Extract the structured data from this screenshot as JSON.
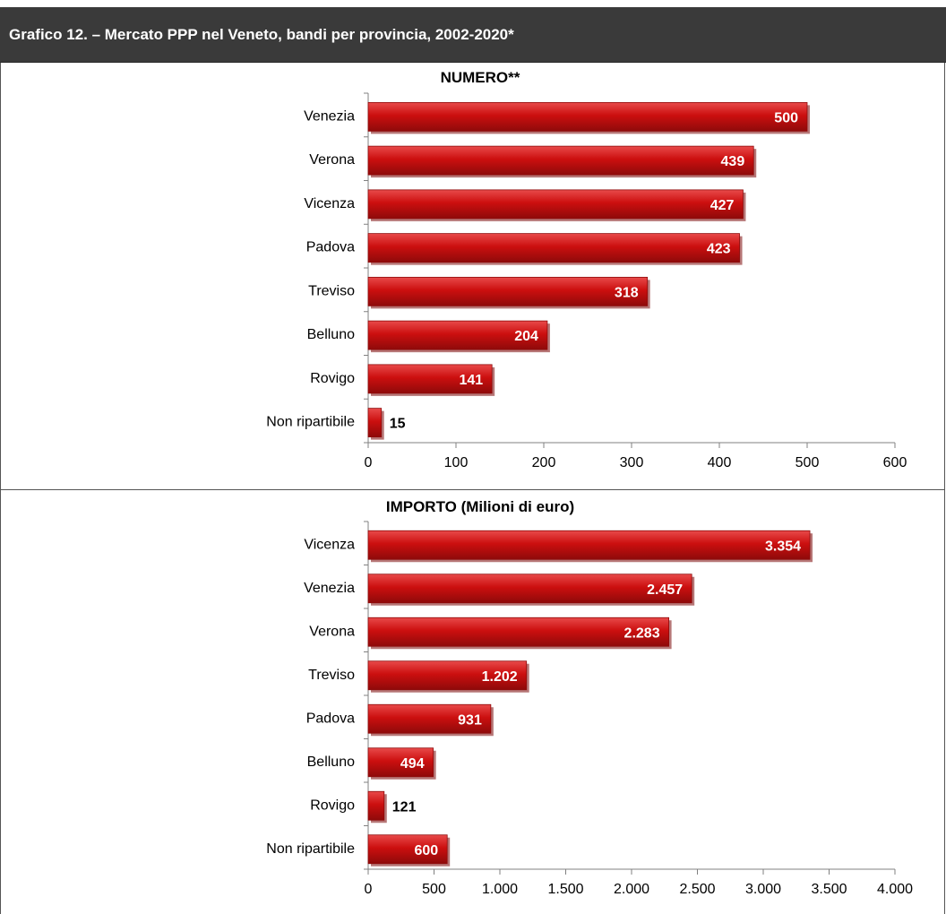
{
  "header": {
    "title": "Grafico 12. – Mercato PPP nel Veneto, bandi per provincia, 2002-2020*"
  },
  "colors": {
    "bar": "#cc0f0f",
    "bar_light": "#e84a4a",
    "bar_dark": "#8e0a0a",
    "header_bg": "#3a3a3a"
  },
  "chart_data": [
    {
      "type": "bar",
      "orientation": "horizontal",
      "title": "NUMERO**",
      "categories": [
        "Venezia",
        "Verona",
        "Vicenza",
        "Padova",
        "Treviso",
        "Belluno",
        "Rovigo",
        "Non ripartibile"
      ],
      "values": [
        500,
        439,
        427,
        423,
        318,
        204,
        141,
        15
      ],
      "value_labels": [
        "500",
        "439",
        "427",
        "423",
        "318",
        "204",
        "141",
        "15"
      ],
      "xlim": [
        0,
        600
      ],
      "ticks": [
        0,
        100,
        200,
        300,
        400,
        500,
        600
      ],
      "tick_labels": [
        "0",
        "100",
        "200",
        "300",
        "400",
        "500",
        "600"
      ],
      "grid": false,
      "legend": "none"
    },
    {
      "type": "bar",
      "orientation": "horizontal",
      "title": "IMPORTO (Milioni di euro)",
      "categories": [
        "Vicenza",
        "Venezia",
        "Verona",
        "Treviso",
        "Padova",
        "Belluno",
        "Rovigo",
        "Non ripartibile"
      ],
      "values": [
        3354,
        2457,
        2283,
        1202,
        931,
        494,
        121,
        600
      ],
      "value_labels": [
        "3.354",
        "2.457",
        "2.283",
        "1.202",
        "931",
        "494",
        "121",
        "600"
      ],
      "xlim": [
        0,
        4000
      ],
      "ticks": [
        0,
        500,
        1000,
        1500,
        2000,
        2500,
        3000,
        3500,
        4000
      ],
      "tick_labels": [
        "0",
        "500",
        "1.000",
        "1.500",
        "2.000",
        "2.500",
        "3.000",
        "3.500",
        "4.000"
      ],
      "grid": false,
      "legend": "none"
    }
  ]
}
